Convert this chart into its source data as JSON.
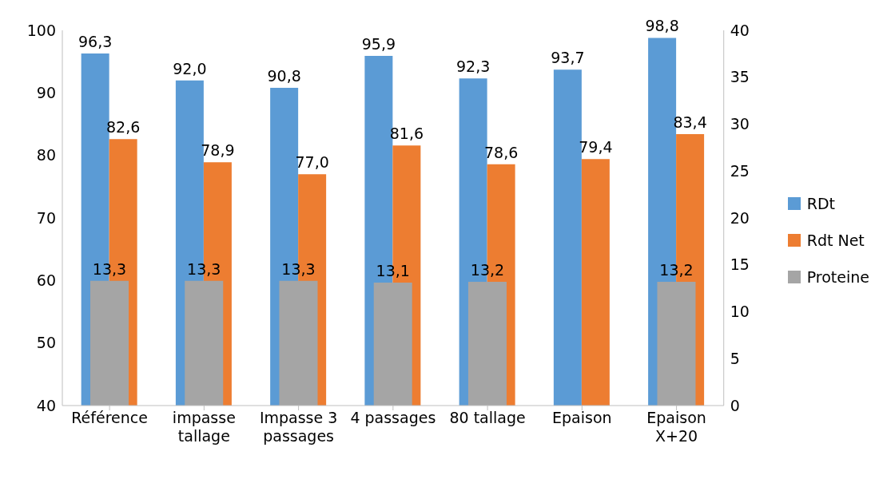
{
  "chart_data": {
    "type": "bar",
    "categories": [
      "Référence",
      "impasse tallage",
      "Impasse 3 passages",
      "4 passages",
      "80 tallage",
      "Epaison",
      "Epaison X+20"
    ],
    "series": [
      {
        "name": "RDt",
        "color": "#5b9bd5",
        "values": [
          96.3,
          92.0,
          90.8,
          95.9,
          92.3,
          93.7,
          98.8
        ],
        "value_labels": [
          "96,3",
          "92,0",
          "90,8",
          "95,9",
          "92,3",
          "93,7",
          "98,8"
        ]
      },
      {
        "name": "Rdt Net",
        "color": "#ed7d31",
        "values": [
          82.6,
          78.9,
          77.0,
          81.6,
          78.6,
          79.4,
          83.4
        ],
        "value_labels": [
          "82,6",
          "78,9",
          "77,0",
          "81,6",
          "78,6",
          "79,4",
          "83,4"
        ]
      },
      {
        "name": "Proteine",
        "color": "#a5a5a5",
        "axis": "y2",
        "values": [
          13.3,
          13.3,
          13.3,
          13.1,
          13.2,
          null,
          13.2
        ],
        "value_labels": [
          "13,3",
          "13,3",
          "13,3",
          "13,1",
          "13,2",
          null,
          "13,2"
        ]
      }
    ],
    "ylim": [
      40,
      100
    ],
    "yticks": [
      40,
      50,
      60,
      70,
      80,
      90,
      100
    ],
    "y2lim": [
      0,
      40
    ],
    "y2ticks": [
      0,
      5,
      10,
      15,
      20,
      25,
      30,
      35,
      40
    ],
    "grid": false,
    "legend": "right"
  }
}
